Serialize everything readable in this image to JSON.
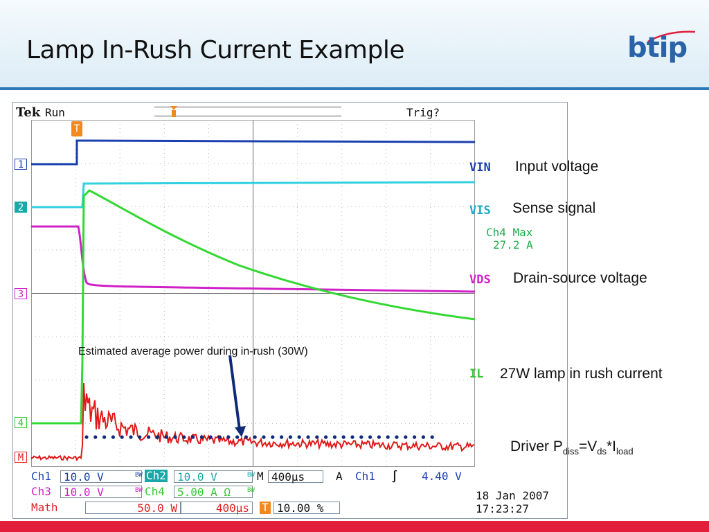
{
  "slide": {
    "title": "Lamp In-Rush Current Example",
    "logo_text": "btip"
  },
  "scope": {
    "brand": "Tek",
    "status": "Run",
    "trigger_status": "Trig?",
    "trigger_marker": "T",
    "channel_markers": [
      "1",
      "2",
      "3",
      "4",
      "M"
    ],
    "annotation": "Estimated average power during in-rush (30W)",
    "readout": {
      "row1": {
        "ch1_label": "Ch1",
        "ch1_value": "10.0 V",
        "bw1": "BW",
        "ch2_label": "Ch2",
        "ch2_value": "10.0 V",
        "bw2": "BW",
        "m_label": "M",
        "timebase": "400µs",
        "a_label": "A",
        "trig_src": "Ch1",
        "trig_slope": "∫",
        "trig_level": "4.40 V"
      },
      "row2": {
        "ch3_label": "Ch3",
        "ch3_value": "10.0 V",
        "bw3": "BW",
        "ch4_label": "Ch4",
        "ch4_value": "5.00 A Ω",
        "bw4": "BW",
        "date": "18 Jan  2007"
      },
      "row3": {
        "math_label": "Math",
        "math_scale": "50.0 W",
        "math_time": "400µs",
        "t_marker": "T",
        "trig_pos": "10.00 %",
        "time": "17:23:27"
      }
    },
    "colors": {
      "ch1": "#1a3fae",
      "ch2": "#18a8a8",
      "ch3": "#d020c8",
      "ch4": "#33c833",
      "math": "#e02020"
    }
  },
  "legend": [
    {
      "tag": "VIN",
      "desc": "Input voltage",
      "color": "#1a3fae"
    },
    {
      "tag": "VIS",
      "desc": "Sense signal",
      "color": "#18a8c8"
    },
    {
      "tag": "VDS",
      "desc": "Drain-source voltage",
      "color": "#d020c8"
    },
    {
      "tag": "IL",
      "desc": "27W lamp in rush current",
      "color": "#33c833"
    }
  ],
  "ch4_max": {
    "line1": "Ch4 Max",
    "line2": "27.2 A"
  },
  "driver": {
    "prefix": "Driver P",
    "sub1": "diss",
    "eq": "=V",
    "sub2": "ds",
    "mul": "*I",
    "sub3": "load"
  }
}
